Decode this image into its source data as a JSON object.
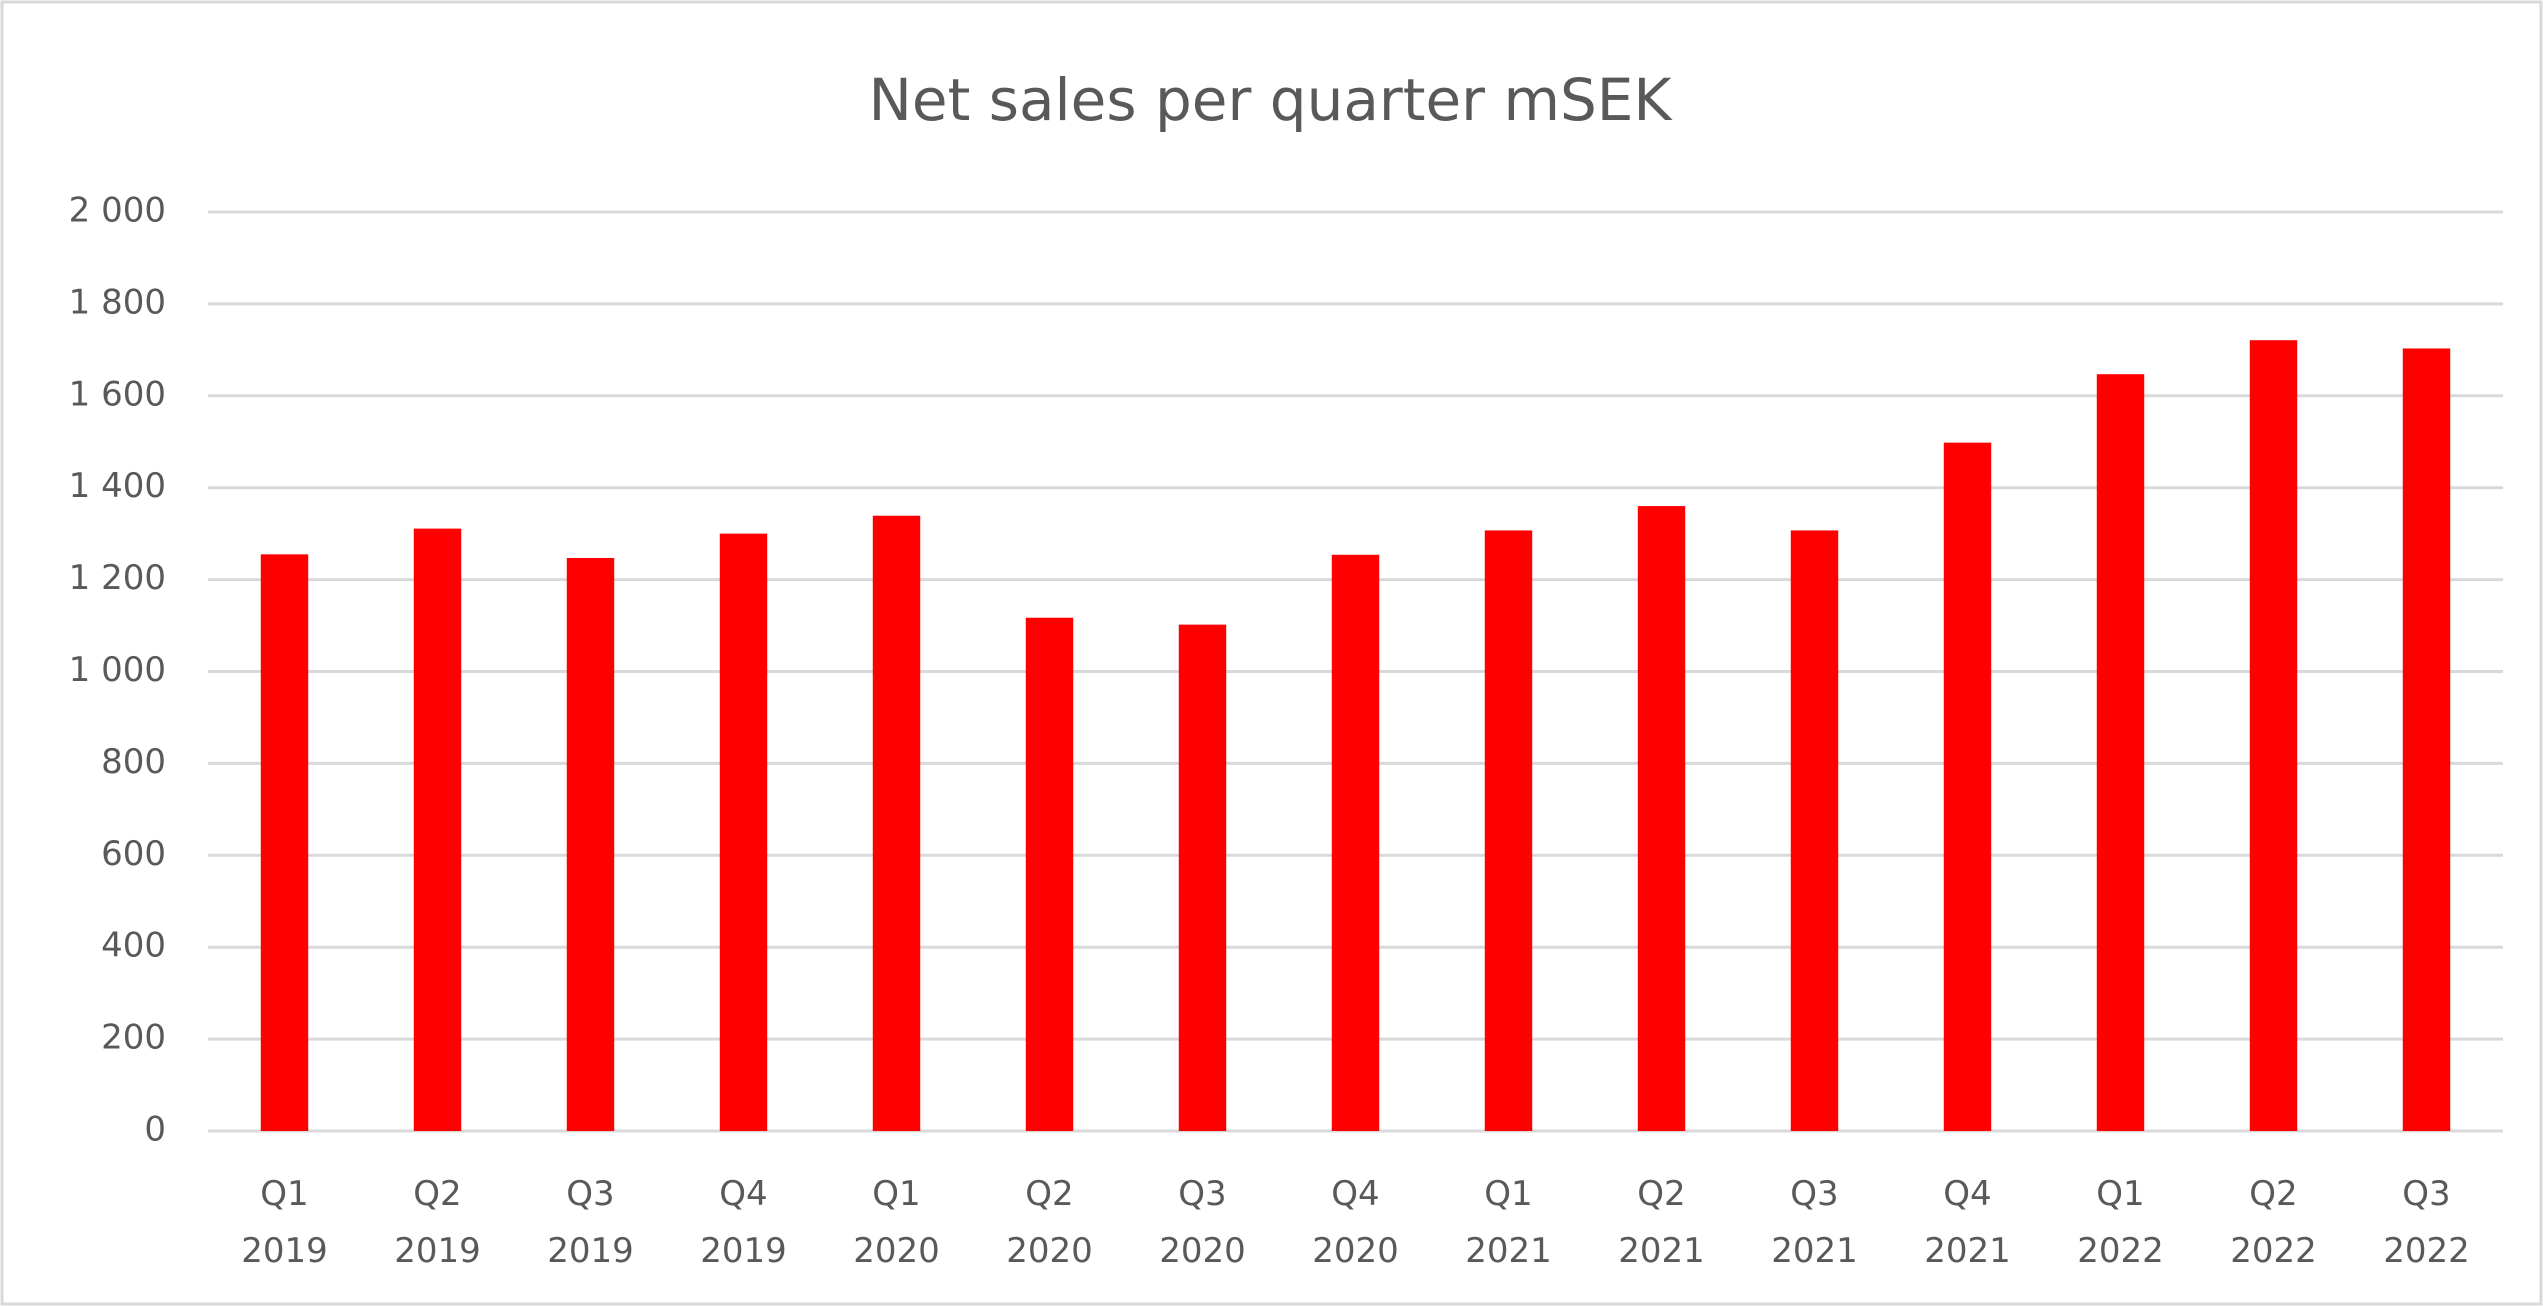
{
  "chart_data": {
    "type": "bar",
    "title": "Net sales per quarter mSEK",
    "categories": [
      "Q1 2019",
      "Q2 2019",
      "Q3 2019",
      "Q4 2019",
      "Q1 2020",
      "Q2 2020",
      "Q3 2020",
      "Q4 2020",
      "Q1 2021",
      "Q2 2021",
      "Q3 2021",
      "Q4 2021",
      "Q1 2022",
      "Q2 2022",
      "Q3 2022"
    ],
    "values": [
      1255,
      1311,
      1247,
      1300,
      1339,
      1117,
      1102,
      1254,
      1307,
      1360,
      1307,
      1498,
      1647,
      1721,
      1703
    ],
    "color": "#ff0000",
    "ylim": [
      0,
      2000
    ],
    "yticks": [
      0,
      200,
      400,
      600,
      800,
      {
        "value": 1000,
        "label": "1 000"
      },
      {
        "value": 1200,
        "label": "1 200"
      },
      {
        "value": 1400,
        "label": "1 400"
      },
      {
        "value": 1600,
        "label": "1 600"
      },
      {
        "value": 1800,
        "label": "1 800"
      },
      {
        "value": 2000,
        "label": "2 000"
      }
    ],
    "grid": true
  }
}
